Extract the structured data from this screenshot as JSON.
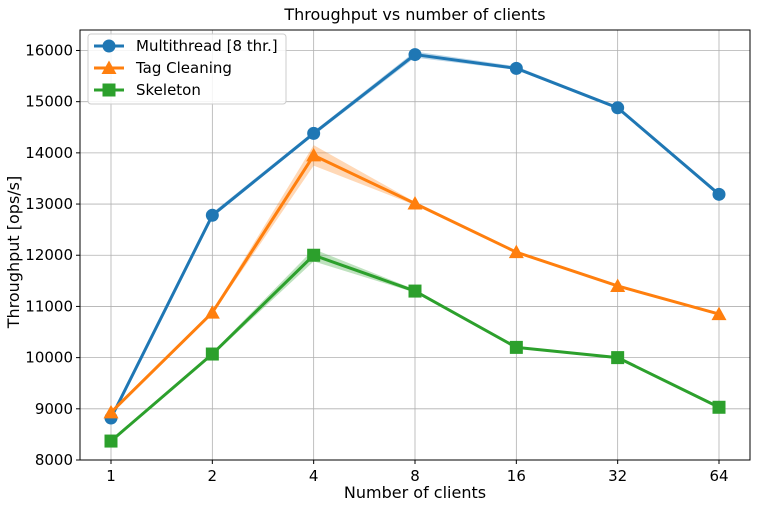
{
  "chart_data": {
    "type": "line",
    "title": "Throughput vs number of clients",
    "xlabel": "Number of clients",
    "ylabel": "Throughput [ops/s]",
    "x_scale": "log2",
    "categories": [
      "1",
      "2",
      "4",
      "8",
      "16",
      "32",
      "64"
    ],
    "x": [
      1,
      2,
      4,
      8,
      16,
      32,
      64
    ],
    "ylim": [
      8000,
      16400
    ],
    "yticks": [
      8000,
      9000,
      10000,
      11000,
      12000,
      13000,
      14000,
      15000,
      16000
    ],
    "grid": true,
    "legend_position": "top-left",
    "series": [
      {
        "name": "Multithread [8 thr.]",
        "color": "#1f77b4",
        "marker": "circle",
        "values": [
          8820,
          12780,
          14380,
          15920,
          15650,
          14880,
          13190
        ],
        "band_low": [
          8800,
          12740,
          14340,
          15860,
          15620,
          14860,
          13170
        ],
        "band_high": [
          8850,
          12830,
          14420,
          15980,
          15690,
          14910,
          13220
        ]
      },
      {
        "name": "Tag Cleaning",
        "color": "#ff7f0e",
        "marker": "triangle",
        "values": [
          8930,
          10880,
          13950,
          13010,
          12060,
          11400,
          10850
        ],
        "band_low": [
          8900,
          10850,
          13750,
          12980,
          12040,
          11380,
          10830
        ],
        "band_high": [
          8960,
          10910,
          14150,
          13040,
          12080,
          11420,
          10870
        ]
      },
      {
        "name": "Skeleton",
        "color": "#2ca02c",
        "marker": "square",
        "values": [
          8370,
          10070,
          12000,
          11300,
          10200,
          10000,
          9030
        ],
        "band_low": [
          8350,
          10040,
          11880,
          11270,
          10180,
          9980,
          9010
        ],
        "band_high": [
          8390,
          10100,
          12120,
          11330,
          10220,
          10020,
          9050
        ]
      }
    ]
  }
}
